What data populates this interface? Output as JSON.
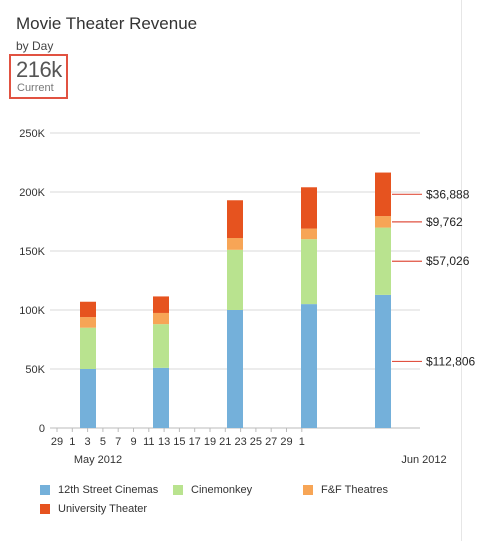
{
  "header": {
    "title": "Movie Theater Revenue",
    "subtitle": "by Day",
    "kpi_value": "216k",
    "kpi_label": "Current"
  },
  "colors": {
    "12th Street Cinemas": "#74b0da",
    "Cinemonkey": "#b9e38f",
    "F&F Theatres": "#f7a556",
    "University Theater": "#e6531f",
    "highlight": "#e15241",
    "grid": "#d9d9d9"
  },
  "chart_data": {
    "type": "bar",
    "stacked": true,
    "title": "Movie Theater Revenue",
    "subtitle": "by Day",
    "ylim": [
      0,
      250000
    ],
    "y_ticks": [
      "0",
      "50K",
      "100K",
      "150K",
      "200K",
      "250K"
    ],
    "x_tick_labels": [
      "29",
      "1",
      "3",
      "5",
      "7",
      "9",
      "11",
      "13",
      "15",
      "17",
      "19",
      "21",
      "23",
      "25",
      "27",
      "29",
      "1"
    ],
    "x_month_labels": [
      "May 2012",
      "Jun 2012"
    ],
    "categories": [
      "May 2",
      "May 9",
      "May 16",
      "May 23",
      "May 30"
    ],
    "series": [
      {
        "name": "12th Street Cinemas",
        "values": [
          50000,
          51000,
          100000,
          105000,
          112806
        ]
      },
      {
        "name": "Cinemonkey",
        "values": [
          35000,
          37000,
          51000,
          55000,
          57026
        ]
      },
      {
        "name": "F&F Theatres",
        "values": [
          9000,
          9500,
          10000,
          9000,
          9762
        ]
      },
      {
        "name": "University Theater",
        "values": [
          13000,
          14000,
          32000,
          35000,
          36888
        ]
      }
    ],
    "annotations": [
      "$36,888",
      "$9,762",
      "$57,026",
      "$112,806"
    ],
    "grid": true,
    "legend_position": "bottom"
  }
}
